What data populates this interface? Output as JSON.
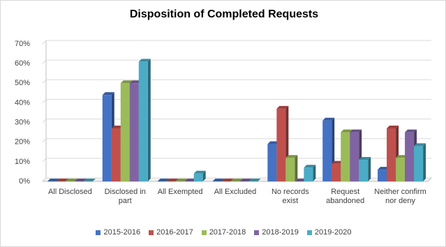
{
  "chart_data": {
    "type": "bar",
    "title": "Disposition of Completed Requests",
    "categories": [
      "All Disclosed",
      "Disclosed in part",
      "All Exempted",
      "All Excluded",
      "No records exist",
      "Request abandoned",
      "Neither confirm nor deny"
    ],
    "series": [
      {
        "name": "2015-2016",
        "color": "#4472c4",
        "values": [
          0,
          44,
          0,
          0,
          19,
          31,
          6
        ]
      },
      {
        "name": "2016-2017",
        "color": "#c0504d",
        "values": [
          0,
          27,
          0,
          0,
          37,
          9,
          27
        ]
      },
      {
        "name": "2017-2018",
        "color": "#9bbb59",
        "values": [
          0,
          50,
          0,
          0,
          12,
          25,
          12
        ]
      },
      {
        "name": "2018-2019",
        "color": "#8064a2",
        "values": [
          0,
          50,
          0,
          0,
          0,
          25,
          25
        ]
      },
      {
        "name": "2019-2020",
        "color": "#4bacc6",
        "values": [
          0,
          61,
          4,
          0,
          7,
          11,
          18
        ]
      }
    ],
    "ylim": [
      0,
      70
    ],
    "yticks": [
      {
        "value": 0,
        "label": "0%"
      },
      {
        "value": 10,
        "label": "10%"
      },
      {
        "value": 20,
        "label": "20%"
      },
      {
        "value": 30,
        "label": "30%"
      },
      {
        "value": 40,
        "label": "40%"
      },
      {
        "value": 50,
        "label": "50%"
      },
      {
        "value": 60,
        "label": "60%"
      },
      {
        "value": 70,
        "label": "70%"
      }
    ],
    "grid": true,
    "legend": "bottom"
  }
}
